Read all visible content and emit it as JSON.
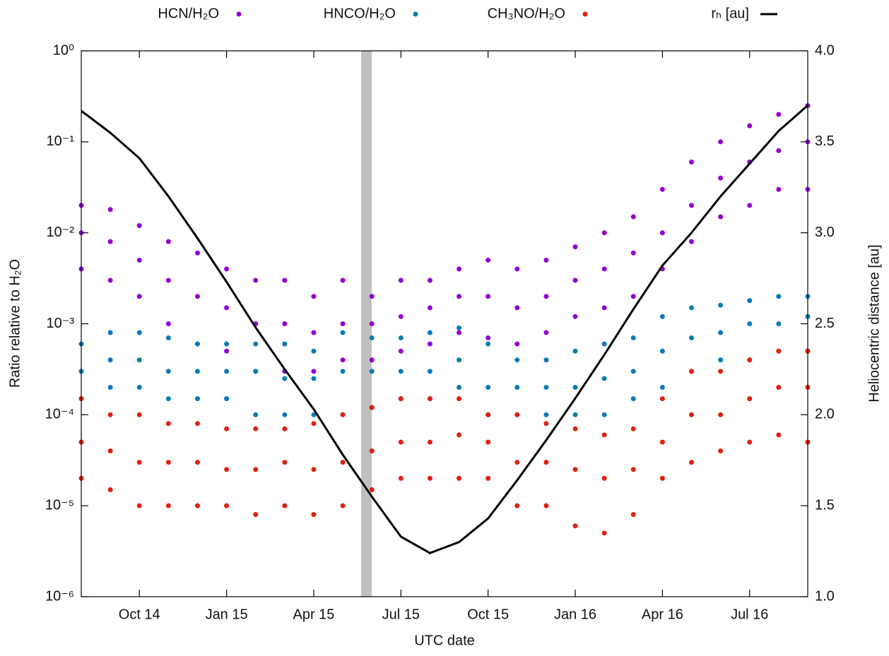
{
  "chart_data": {
    "type": "scatter",
    "x_label": "UTC date",
    "y_label": "Ratio relative to H₂O",
    "y2_label": "Heliocentric distance [au]",
    "y_scale": "log",
    "xlim": [
      "2014-08",
      "2016-09"
    ],
    "xticks": [
      {
        "value": "2014-10",
        "label": "Oct 14"
      },
      {
        "value": "2015-01",
        "label": "Jan 15"
      },
      {
        "value": "2015-04",
        "label": "Apr 15"
      },
      {
        "value": "2015-07",
        "label": "Jul 15"
      },
      {
        "value": "2015-10",
        "label": "Oct 15"
      },
      {
        "value": "2016-01",
        "label": "Jan 16"
      },
      {
        "value": "2016-04",
        "label": "Apr 16"
      },
      {
        "value": "2016-07",
        "label": "Jul 16"
      }
    ],
    "ylim": [
      1e-06,
      1
    ],
    "yticks": [
      {
        "value": 1e-06,
        "label": "10⁻⁶"
      },
      {
        "value": 1e-05,
        "label": "10⁻⁵"
      },
      {
        "value": 0.0001,
        "label": "10⁻⁴"
      },
      {
        "value": 0.001,
        "label": "10⁻³"
      },
      {
        "value": 0.01,
        "label": "10⁻²"
      },
      {
        "value": 0.1,
        "label": "10⁻¹"
      },
      {
        "value": 1,
        "label": "10⁰"
      }
    ],
    "y2lim": [
      1.0,
      4.0
    ],
    "y2ticks": [
      {
        "value": 1,
        "label": "1.0"
      },
      1.5,
      {
        "value": 2,
        "label": "2.0"
      },
      2.5,
      {
        "value": 3,
        "label": "3.0"
      },
      3.5,
      {
        "value": 4,
        "label": "4.0"
      }
    ],
    "legend": "top-outside",
    "x": [
      "2014-08",
      "2014-08",
      "2014-08",
      "2014-09",
      "2014-09",
      "2014-09",
      "2014-10",
      "2014-10",
      "2014-10",
      "2014-11",
      "2014-11",
      "2014-11",
      "2014-12",
      "2014-12",
      "2014-12",
      "2015-01",
      "2015-01",
      "2015-01",
      "2015-02",
      "2015-02",
      "2015-02",
      "2015-03",
      "2015-03",
      "2015-03",
      "2015-04",
      "2015-04",
      "2015-04",
      "2015-05",
      "2015-05",
      "2015-05",
      "2015-06",
      "2015-06",
      "2015-06",
      "2015-07",
      "2015-07",
      "2015-07",
      "2015-08",
      "2015-08",
      "2015-08",
      "2015-09",
      "2015-09",
      "2015-09",
      "2015-10",
      "2015-10",
      "2015-10",
      "2015-11",
      "2015-11",
      "2015-11",
      "2015-12",
      "2015-12",
      "2015-12",
      "2016-01",
      "2016-01",
      "2016-01",
      "2016-02",
      "2016-02",
      "2016-02",
      "2016-03",
      "2016-03",
      "2016-03",
      "2016-04",
      "2016-04",
      "2016-04",
      "2016-05",
      "2016-05",
      "2016-05",
      "2016-06",
      "2016-06",
      "2016-06",
      "2016-07",
      "2016-07",
      "2016-07",
      "2016-08",
      "2016-08",
      "2016-08",
      "2016-09",
      "2016-09",
      "2016-09"
    ],
    "series": [
      {
        "name": "HCN/H₂O",
        "color": "#9400d3",
        "values": [
          0.004,
          0.01,
          0.02,
          0.003,
          0.008,
          0.018,
          0.002,
          0.005,
          0.012,
          0.001,
          0.003,
          0.008,
          0.0006,
          0.002,
          0.006,
          0.0005,
          0.0015,
          0.004,
          0.0003,
          0.001,
          0.003,
          0.0003,
          0.001,
          0.003,
          0.0003,
          0.0008,
          0.002,
          0.0004,
          0.001,
          0.003,
          0.0004,
          0.001,
          0.002,
          0.0005,
          0.0012,
          0.003,
          0.0006,
          0.0015,
          0.003,
          0.0008,
          0.002,
          0.004,
          0.0007,
          0.002,
          0.005,
          0.0006,
          0.0015,
          0.004,
          0.0008,
          0.002,
          0.005,
          0.0012,
          0.003,
          0.007,
          0.0015,
          0.004,
          0.01,
          0.002,
          0.006,
          0.015,
          0.004,
          0.01,
          0.03,
          0.008,
          0.02,
          0.06,
          0.015,
          0.04,
          0.1,
          0.02,
          0.06,
          0.15,
          0.03,
          0.08,
          0.2,
          0.03,
          0.1,
          0.25
        ]
      },
      {
        "name": "HNCO/H₂O",
        "color": "#0a7cb5",
        "values": [
          0.00015,
          0.0003,
          0.0006,
          0.0002,
          0.0004,
          0.0008,
          0.0002,
          0.0004,
          0.0008,
          0.00015,
          0.0003,
          0.0007,
          0.00015,
          0.0003,
          0.0006,
          0.00015,
          0.0003,
          0.0006,
          0.0001,
          0.0003,
          0.0006,
          0.0001,
          0.00025,
          0.0006,
          0.0001,
          0.00025,
          0.0005,
          0.0001,
          0.0003,
          0.0008,
          0.00012,
          0.0003,
          0.0007,
          0.00015,
          0.0003,
          0.0007,
          0.00015,
          0.0003,
          0.0008,
          0.0002,
          0.0004,
          0.0009,
          0.0001,
          0.0002,
          0.0006,
          0.0001,
          0.0002,
          0.0004,
          0.0001,
          0.0002,
          0.0004,
          0.0001,
          0.0002,
          0.0005,
          0.0001,
          0.00025,
          0.0006,
          0.00015,
          0.0003,
          0.0007,
          0.0002,
          0.0005,
          0.0012,
          0.0003,
          0.0007,
          0.0015,
          0.0004,
          0.0008,
          0.0016,
          0.0004,
          0.001,
          0.0018,
          0.0005,
          0.001,
          0.002,
          0.0005,
          0.0012,
          0.002
        ]
      },
      {
        "name": "CH₃NO/H₂O",
        "color": "#e0200f",
        "values": [
          2e-05,
          5e-05,
          0.00015,
          1.5e-05,
          4e-05,
          0.0001,
          1e-05,
          3e-05,
          0.0001,
          1e-05,
          3e-05,
          8e-05,
          1e-05,
          3e-05,
          8e-05,
          1e-05,
          2.5e-05,
          7e-05,
          8e-06,
          2.5e-05,
          7e-05,
          1e-05,
          3e-05,
          7e-05,
          8e-06,
          2.5e-05,
          8e-05,
          1e-05,
          3e-05,
          0.0001,
          1.5e-05,
          4e-05,
          0.00012,
          2e-05,
          5e-05,
          0.00015,
          2e-05,
          5e-05,
          0.00015,
          2e-05,
          6e-05,
          0.00015,
          2e-05,
          5e-05,
          0.0001,
          1e-05,
          3e-05,
          0.0001,
          1e-05,
          3e-05,
          8e-05,
          6e-06,
          2.5e-05,
          7e-05,
          5e-06,
          2e-05,
          6e-05,
          8e-06,
          2.5e-05,
          7e-05,
          2e-05,
          5e-05,
          0.00015,
          3e-05,
          0.0001,
          0.0003,
          4e-05,
          0.0001,
          0.0003,
          5e-05,
          0.00015,
          0.0004,
          6e-05,
          0.0002,
          0.0005,
          5e-05,
          0.0002,
          0.0005
        ]
      },
      {
        "name": "rₕ [au]",
        "color": "#000000",
        "type": "line",
        "axis": "y2",
        "x": [
          "2014-08",
          "2014-09",
          "2014-10",
          "2014-11",
          "2014-12",
          "2015-01",
          "2015-02",
          "2015-03",
          "2015-04",
          "2015-05",
          "2015-06",
          "2015-07",
          "2015-08",
          "2015-09",
          "2015-10",
          "2015-11",
          "2015-12",
          "2016-01",
          "2016-02",
          "2016-03",
          "2016-04",
          "2016-05",
          "2016-06",
          "2016-07",
          "2016-08",
          "2016-09"
        ],
        "values": [
          3.67,
          3.55,
          3.41,
          3.2,
          2.97,
          2.73,
          2.48,
          2.25,
          2.03,
          1.78,
          1.55,
          1.33,
          1.24,
          1.3,
          1.43,
          1.64,
          1.86,
          2.09,
          2.33,
          2.58,
          2.82,
          3.0,
          3.2,
          3.38,
          3.56,
          3.7
        ]
      }
    ]
  }
}
